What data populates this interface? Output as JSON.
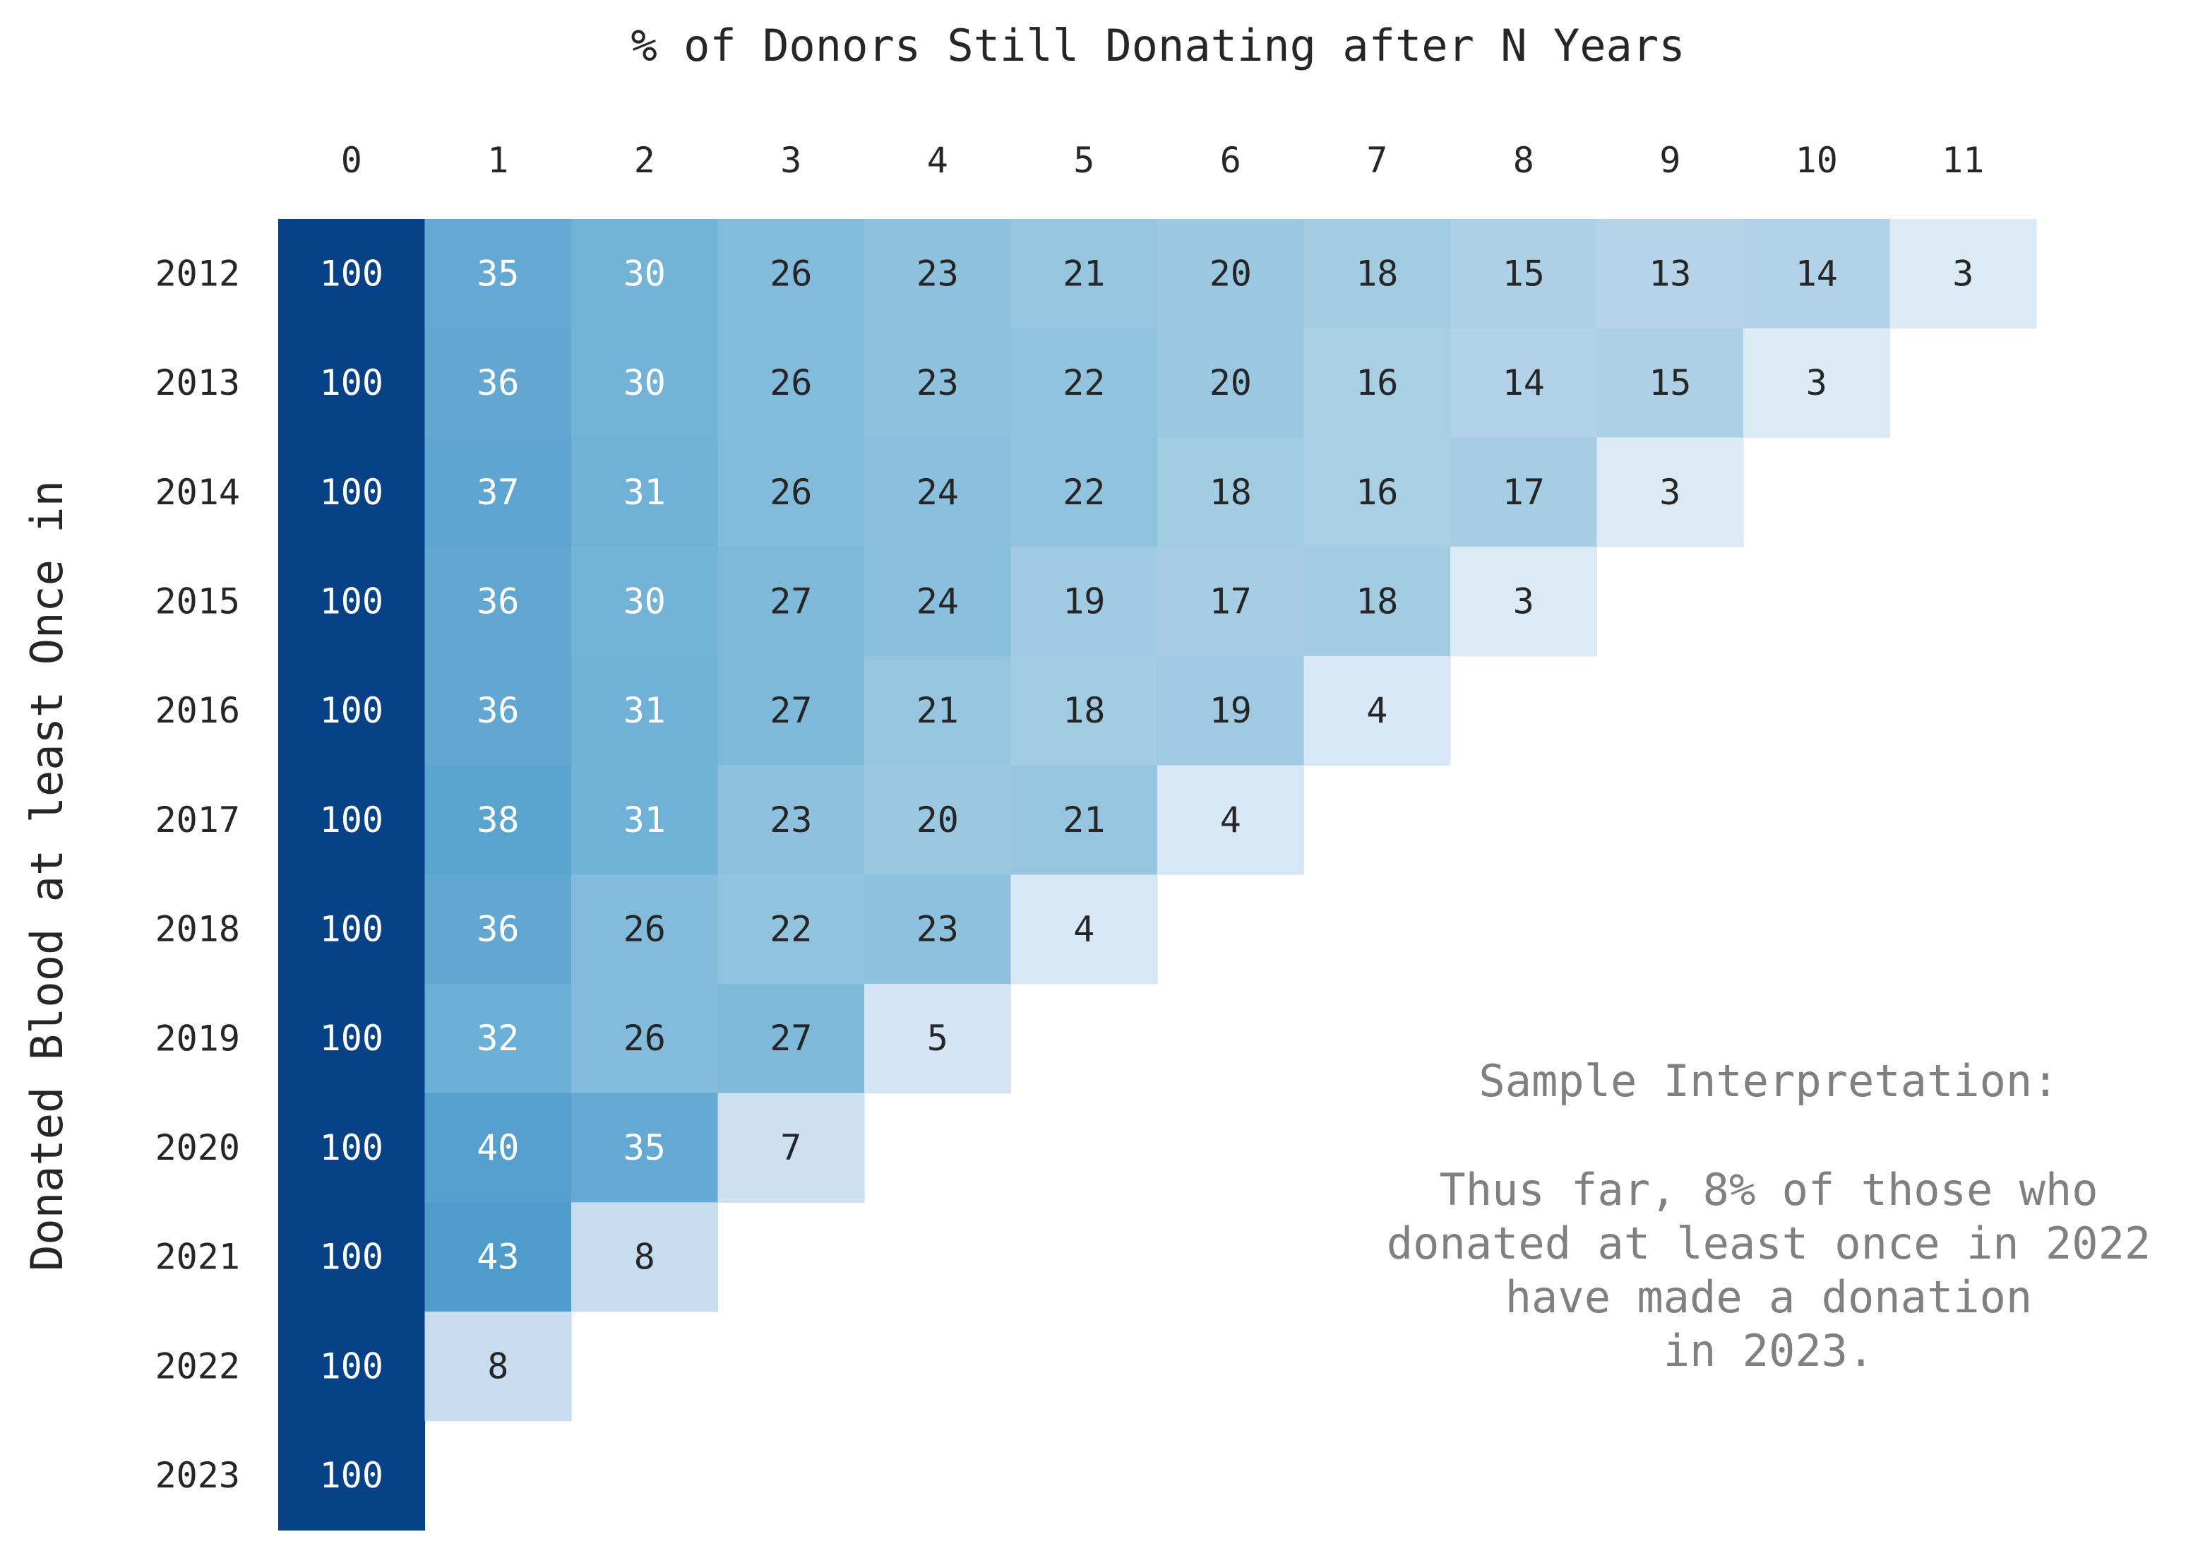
{
  "chart_data": {
    "type": "heatmap",
    "title": "% of Donors Still Donating after N Years",
    "xlabel": "",
    "ylabel": "Donated Blood at least Once in",
    "x_categories": [
      "0",
      "1",
      "2",
      "3",
      "4",
      "5",
      "6",
      "7",
      "8",
      "9",
      "10",
      "11"
    ],
    "y_categories": [
      "2012",
      "2013",
      "2014",
      "2015",
      "2016",
      "2017",
      "2018",
      "2019",
      "2020",
      "2021",
      "2022",
      "2023"
    ],
    "values": [
      [
        100,
        35,
        30,
        26,
        23,
        21,
        20,
        18,
        15,
        13,
        14,
        3
      ],
      [
        100,
        36,
        30,
        26,
        23,
        22,
        20,
        16,
        14,
        15,
        3
      ],
      [
        100,
        37,
        31,
        26,
        24,
        22,
        18,
        16,
        17,
        3
      ],
      [
        100,
        36,
        30,
        27,
        24,
        19,
        17,
        18,
        3
      ],
      [
        100,
        36,
        31,
        27,
        21,
        18,
        19,
        4
      ],
      [
        100,
        38,
        31,
        23,
        20,
        21,
        4
      ],
      [
        100,
        36,
        26,
        22,
        23,
        4
      ],
      [
        100,
        32,
        26,
        27,
        5
      ],
      [
        100,
        40,
        35,
        7
      ],
      [
        100,
        43,
        8
      ],
      [
        100,
        8
      ],
      [
        100
      ]
    ],
    "colormap": "Blues",
    "color_range": [
      0,
      100
    ],
    "x_axis_position": "top",
    "grid": false,
    "annotation": {
      "heading": "Sample Interpretation:",
      "lines": [
        "Thus far, 8% of those who",
        "donated at least once in 2022",
        "have made a donation",
        "in 2023."
      ]
    }
  }
}
